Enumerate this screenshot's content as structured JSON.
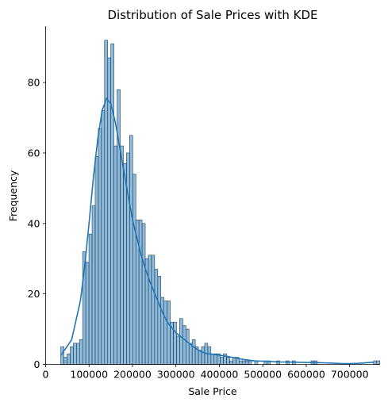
{
  "chart_data": {
    "type": "bar",
    "subtype": "histogram-with-kde",
    "title": "Distribution of Sale Prices with KDE",
    "xlabel": "Sale Price",
    "ylabel": "Frequency",
    "xlim": [
      0,
      770000
    ],
    "ylim": [
      0,
      96
    ],
    "xticks": [
      0,
      100000,
      200000,
      300000,
      400000,
      500000,
      600000,
      700000
    ],
    "yticks": [
      0,
      20,
      40,
      60,
      80
    ],
    "grid": false,
    "legend": "none",
    "bar_color": "#1f77b4",
    "bar_alpha": 0.5,
    "edge_color": "#1f3f5f",
    "line_color": "#1f77b4",
    "bin_start": 34900,
    "bin_width": 7201,
    "counts": [
      5,
      2,
      3,
      5,
      6,
      6,
      7,
      32,
      29,
      37,
      45,
      59,
      67,
      72,
      92,
      87,
      91,
      62,
      78,
      62,
      57,
      60,
      65,
      54,
      41,
      41,
      40,
      30,
      31,
      31,
      27,
      25,
      19,
      18,
      18,
      12,
      12,
      8,
      13,
      11,
      10,
      6,
      7,
      5,
      4,
      5,
      6,
      5,
      3,
      3,
      3,
      2,
      3,
      2,
      1,
      2,
      2,
      1,
      1,
      1,
      1,
      0,
      1,
      0,
      0,
      1,
      1,
      0,
      0,
      1,
      0,
      0,
      1,
      0,
      1,
      0,
      0,
      0,
      0,
      0,
      1,
      1,
      0,
      0,
      0,
      0,
      0,
      0,
      0,
      0,
      0,
      0,
      0,
      0,
      0,
      0,
      0,
      0,
      0,
      0,
      1,
      1
    ],
    "kde": {
      "x": [
        34900,
        60000,
        80000,
        90000,
        100000,
        110000,
        120000,
        130000,
        140000,
        150000,
        160000,
        170000,
        180000,
        190000,
        200000,
        210000,
        220000,
        230000,
        240000,
        250000,
        260000,
        270000,
        280000,
        290000,
        300000,
        310000,
        320000,
        330000,
        340000,
        350000,
        360000,
        370000,
        380000,
        390000,
        400000,
        420000,
        440000,
        460000,
        480000,
        500000,
        520000,
        540000,
        560000,
        580000,
        600000,
        620000,
        640000,
        660000,
        680000,
        700000,
        720000,
        740000,
        755000
      ],
      "y": [
        2.5,
        7,
        18,
        28,
        40,
        53,
        64,
        72,
        75.5,
        74,
        69,
        62,
        55,
        48,
        41,
        36,
        31,
        27,
        23.5,
        20.5,
        17.5,
        14.5,
        12,
        10.5,
        9,
        8,
        7,
        6,
        5,
        4.2,
        3.5,
        3.1,
        2.9,
        2.8,
        2.6,
        2.2,
        1.7,
        1.3,
        1.0,
        0.9,
        0.8,
        0.7,
        0.65,
        0.6,
        0.55,
        0.5,
        0.45,
        0.35,
        0.25,
        0.2,
        0.3,
        0.5,
        0.6
      ]
    }
  }
}
